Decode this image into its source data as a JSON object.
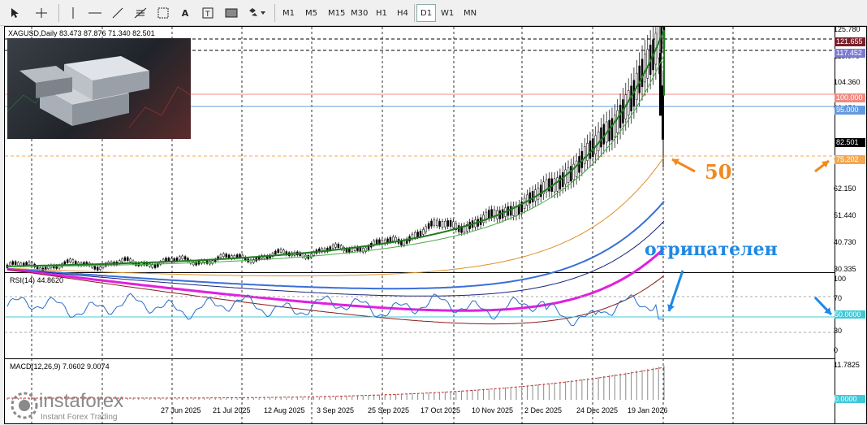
{
  "toolbar": {
    "timeframes": [
      "M1",
      "M5",
      "M15",
      "M30",
      "H1",
      "H4",
      "D1",
      "W1",
      "MN"
    ],
    "active_timeframe": "D1",
    "tools": [
      "cursor-icon",
      "crosshair-icon",
      "vertical-line-icon",
      "horizontal-line-icon",
      "trendline-icon",
      "fibonacci-icon",
      "gann-icon",
      "text-icon",
      "label-icon",
      "rectangle-icon",
      "shapes-icon"
    ]
  },
  "chart": {
    "symbol_line": "XAGUSD,Daily  83.473 87.876 71.340 82.501",
    "rsi_label": "RSI(14) 44.8620",
    "macd_label": "MACD(12,26,9) 7.0602 9.0074",
    "price_scale": [
      "125.780",
      "115.070",
      "104.360",
      "93.650",
      "82.501",
      "72.545",
      "62.150",
      "51.440",
      "40.730",
      "30.335"
    ],
    "price_tags": [
      {
        "value": "121.655",
        "color": "#7a1f2a"
      },
      {
        "value": "117.452",
        "color": "#7b7bd6"
      },
      {
        "value": "100.000",
        "color": "#f08a80"
      },
      {
        "value": "95.000",
        "color": "#6699dd"
      },
      {
        "value": "82.501",
        "color": "#000000"
      },
      {
        "value": "75.202",
        "color": "#f4a850"
      }
    ],
    "rsi_scale": [
      "100",
      "70",
      "50.0000",
      "30",
      "0"
    ],
    "macd_scale": [
      "11.7825",
      "0.0000"
    ],
    "dates": [
      "27 Jun 2025",
      "21 Jul 2025",
      "12 Aug 2025",
      "3 Sep 2025",
      "25 Sep 2025",
      "17 Oct 2025",
      "10 Nov 2025",
      "2 Dec 2025",
      "24 Dec 2025",
      "19 Jan 2026"
    ]
  },
  "annotations": {
    "label_50": "50",
    "label_negative": "отрицателен"
  },
  "watermark": {
    "brand": "instaforex",
    "tagline": "Instant Forex Trading"
  },
  "colors": {
    "ema_fast": "#1e7a1e",
    "ema_orange": "#e0902a",
    "ema_blue": "#3a6fd8",
    "ema_navy": "#1a237e",
    "ema_magenta": "#e020e0",
    "ema_darkred": "#8b1a1a",
    "rsi_line": "#2a6ec8",
    "annotation_orange": "#f08a1e",
    "annotation_blue": "#1e88e5"
  }
}
